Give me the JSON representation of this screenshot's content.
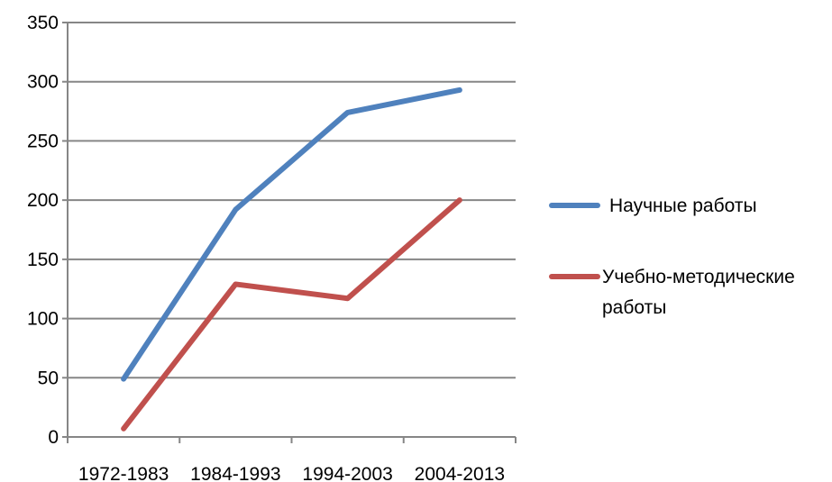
{
  "chart_data": {
    "type": "line",
    "categories": [
      "1972-1983",
      "1984-1993",
      "1994-2003",
      "2004-2013"
    ],
    "series": [
      {
        "name": "Научные работы",
        "name_lines": [
          "Научные работы"
        ],
        "color": "#4F81BD",
        "values": [
          49,
          192,
          274,
          293
        ]
      },
      {
        "name": "Учебно-методические работы",
        "name_lines": [
          "Учебно-методические",
          "работы"
        ],
        "color": "#C0504D",
        "values": [
          7,
          129,
          117,
          200
        ]
      }
    ],
    "y_ticks": [
      "0",
      "50",
      "100",
      "150",
      "200",
      "250",
      "300",
      "350"
    ],
    "ylim": [
      0,
      350
    ],
    "y_step": 50,
    "title": "",
    "xlabel": "",
    "ylabel": "",
    "grid": true,
    "legend": "right"
  }
}
